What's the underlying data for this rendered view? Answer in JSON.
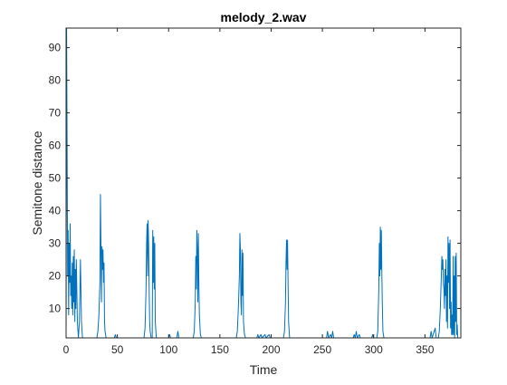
{
  "chart_data": {
    "type": "line",
    "title": "melody_2.wav",
    "xlabel": "Time",
    "ylabel": "Semitone distance",
    "xlim": [
      0,
      385
    ],
    "ylim": [
      1,
      96
    ],
    "xticks": [
      0,
      50,
      100,
      150,
      200,
      250,
      300,
      350
    ],
    "yticks": [
      10,
      20,
      30,
      40,
      50,
      60,
      70,
      80,
      90
    ],
    "grid": false,
    "line_color": "#0072bd",
    "series": [
      {
        "values": [
          [
            0,
            1
          ],
          [
            0.5,
            96
          ],
          [
            1,
            60
          ],
          [
            1.5,
            20
          ],
          [
            2,
            34
          ],
          [
            2.5,
            8
          ],
          [
            3,
            30
          ],
          [
            3.5,
            18
          ],
          [
            4,
            36
          ],
          [
            4.5,
            14
          ],
          [
            5,
            20
          ],
          [
            5.5,
            10
          ],
          [
            6,
            24
          ],
          [
            6.5,
            8
          ],
          [
            7,
            26
          ],
          [
            7.5,
            12
          ],
          [
            8,
            28
          ],
          [
            8.5,
            6
          ],
          [
            9,
            22
          ],
          [
            9.5,
            10
          ],
          [
            10,
            25
          ],
          [
            11,
            6
          ],
          [
            12,
            1
          ],
          [
            13,
            6
          ],
          [
            14,
            25
          ],
          [
            15,
            6
          ],
          [
            16,
            1
          ],
          [
            30,
            1
          ],
          [
            31,
            3
          ],
          [
            32,
            8
          ],
          [
            33,
            18
          ],
          [
            33.5,
            45
          ],
          [
            34,
            30
          ],
          [
            34.5,
            12
          ],
          [
            35,
            29
          ],
          [
            35.5,
            22
          ],
          [
            36,
            28
          ],
          [
            36.5,
            18
          ],
          [
            37,
            24
          ],
          [
            37.5,
            6
          ],
          [
            38,
            3
          ],
          [
            39,
            1
          ],
          [
            47,
            1
          ],
          [
            48,
            2
          ],
          [
            49,
            1
          ],
          [
            76,
            1
          ],
          [
            77,
            4
          ],
          [
            78,
            16
          ],
          [
            78.5,
            30
          ],
          [
            79,
            36
          ],
          [
            79.5,
            20
          ],
          [
            80,
            37
          ],
          [
            80.5,
            30
          ],
          [
            81,
            16
          ],
          [
            81.5,
            6
          ],
          [
            82,
            3
          ],
          [
            83,
            1
          ],
          [
            84,
            1
          ],
          [
            84.5,
            34
          ],
          [
            85,
            18
          ],
          [
            85.5,
            32
          ],
          [
            86,
            16
          ],
          [
            86.5,
            30
          ],
          [
            87,
            6
          ],
          [
            88,
            1
          ],
          [
            100,
            1
          ],
          [
            101,
            2
          ],
          [
            102,
            1
          ],
          [
            108,
            1
          ],
          [
            109,
            3
          ],
          [
            110,
            1
          ],
          [
            124,
            1
          ],
          [
            125,
            3
          ],
          [
            126,
            12
          ],
          [
            126.5,
            26
          ],
          [
            127,
            16
          ],
          [
            127.5,
            34
          ],
          [
            128,
            28
          ],
          [
            128.5,
            12
          ],
          [
            129,
            33
          ],
          [
            129.5,
            18
          ],
          [
            130,
            8
          ],
          [
            131,
            2
          ],
          [
            132,
            1
          ],
          [
            166,
            1
          ],
          [
            167,
            3
          ],
          [
            168,
            10
          ],
          [
            169,
            20
          ],
          [
            169.5,
            33
          ],
          [
            170,
            28
          ],
          [
            170.5,
            12
          ],
          [
            171,
            8
          ],
          [
            171.5,
            28
          ],
          [
            172,
            14
          ],
          [
            172.5,
            27
          ],
          [
            173,
            6
          ],
          [
            174,
            2
          ],
          [
            175,
            1
          ],
          [
            186,
            1
          ],
          [
            187,
            2
          ],
          [
            188,
            1
          ],
          [
            190,
            2
          ],
          [
            191,
            1
          ],
          [
            194,
            2
          ],
          [
            195,
            1
          ],
          [
            198,
            2
          ],
          [
            199,
            1
          ],
          [
            212,
            1
          ],
          [
            213,
            3
          ],
          [
            214,
            12
          ],
          [
            214.5,
            24
          ],
          [
            215,
            31
          ],
          [
            215.5,
            22
          ],
          [
            216,
            31
          ],
          [
            216.5,
            18
          ],
          [
            217,
            6
          ],
          [
            218,
            1
          ],
          [
            254,
            1
          ],
          [
            255,
            3
          ],
          [
            256,
            1
          ],
          [
            258,
            2
          ],
          [
            259,
            1
          ],
          [
            260,
            3
          ],
          [
            261,
            1
          ],
          [
            280,
            1
          ],
          [
            281,
            2
          ],
          [
            282,
            1
          ],
          [
            283,
            3
          ],
          [
            284,
            1
          ],
          [
            286,
            2
          ],
          [
            287,
            1
          ],
          [
            298,
            1
          ],
          [
            299,
            2
          ],
          [
            300,
            1
          ],
          [
            303,
            1
          ],
          [
            304,
            3
          ],
          [
            305,
            16
          ],
          [
            305.5,
            30
          ],
          [
            306,
            20
          ],
          [
            306.5,
            35
          ],
          [
            307,
            22
          ],
          [
            307.5,
            34
          ],
          [
            308,
            20
          ],
          [
            308.5,
            10
          ],
          [
            309,
            3
          ],
          [
            310,
            1
          ],
          [
            355,
            1
          ],
          [
            356,
            3
          ],
          [
            357,
            1
          ],
          [
            359,
            3
          ],
          [
            360,
            4
          ],
          [
            361,
            1
          ],
          [
            363,
            1
          ],
          [
            364,
            3
          ],
          [
            365,
            10
          ],
          [
            366,
            20
          ],
          [
            366.5,
            26
          ],
          [
            367,
            22
          ],
          [
            367.5,
            25
          ],
          [
            368,
            18
          ],
          [
            368.5,
            16
          ],
          [
            369,
            10
          ],
          [
            369.5,
            22
          ],
          [
            370,
            14
          ],
          [
            370.5,
            25
          ],
          [
            371,
            6
          ],
          [
            371.5,
            20
          ],
          [
            372,
            4
          ],
          [
            372.5,
            32
          ],
          [
            373,
            18
          ],
          [
            373.5,
            30
          ],
          [
            374,
            10
          ],
          [
            374.5,
            31
          ],
          [
            375,
            4
          ],
          [
            375.5,
            12
          ],
          [
            376,
            2
          ],
          [
            376.5,
            8
          ],
          [
            377,
            2
          ],
          [
            377.5,
            26
          ],
          [
            378,
            2
          ],
          [
            378.5,
            20
          ],
          [
            379,
            1
          ],
          [
            379.5,
            26
          ],
          [
            380,
            6
          ],
          [
            380.5,
            27
          ],
          [
            381,
            2
          ],
          [
            381.5,
            5
          ],
          [
            382,
            1
          ]
        ]
      }
    ]
  }
}
